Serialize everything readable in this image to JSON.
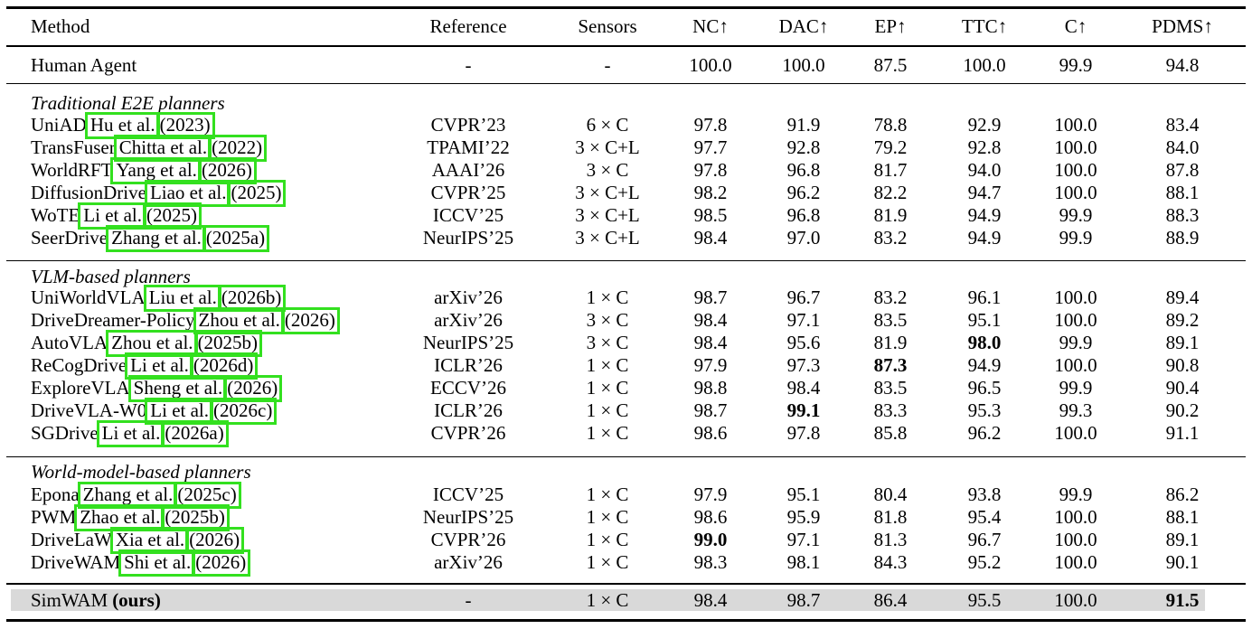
{
  "columns": [
    "Method",
    "Reference",
    "Sensors",
    "NC↑",
    "DAC↑",
    "EP↑",
    "TTC↑",
    "C↑",
    "PDMS↑"
  ],
  "human_row": {
    "method": "Human Agent",
    "reference": "-",
    "sensors": "-",
    "nc": "100.0",
    "dac": "100.0",
    "ep": "87.5",
    "ttc": "100.0",
    "c": "99.9",
    "pdms": "94.8"
  },
  "sections": [
    {
      "title": "Traditional E2E planners"
    },
    {
      "title": "VLM-based planners"
    },
    {
      "title": "World-model-based planners"
    }
  ],
  "rows": [
    {
      "method": "UniAD",
      "authors": "Hu et al.",
      "year": "(2023)",
      "reference": "CVPR’23",
      "sensors": "6 × C",
      "nc": "97.8",
      "dac": "91.9",
      "ep": "78.8",
      "ttc": "92.9",
      "c": "100.0",
      "pdms": "83.4"
    },
    {
      "method": "TransFuser",
      "authors": "Chitta et al.",
      "year": "(2022)",
      "reference": "TPAMI’22",
      "sensors": "3 × C+L",
      "nc": "97.7",
      "dac": "92.8",
      "ep": "79.2",
      "ttc": "92.8",
      "c": "100.0",
      "pdms": "84.0"
    },
    {
      "method": "WorldRFT",
      "authors": "Yang et al.",
      "year": "(2026)",
      "reference": "AAAI’26",
      "sensors": "3 × C",
      "nc": "97.8",
      "dac": "96.8",
      "ep": "81.7",
      "ttc": "94.0",
      "c": "100.0",
      "pdms": "87.8"
    },
    {
      "method": "DiffusionDrive",
      "authors": "Liao et al.",
      "year": "(2025)",
      "reference": "CVPR’25",
      "sensors": "3 × C+L",
      "nc": "98.2",
      "dac": "96.2",
      "ep": "82.2",
      "ttc": "94.7",
      "c": "100.0",
      "pdms": "88.1"
    },
    {
      "method": "WoTE",
      "authors": "Li et al.",
      "year": "(2025)",
      "reference": "ICCV’25",
      "sensors": "3 × C+L",
      "nc": "98.5",
      "dac": "96.8",
      "ep": "81.9",
      "ttc": "94.9",
      "c": "99.9",
      "pdms": "88.3"
    },
    {
      "method": "SeerDrive",
      "authors": "Zhang et al.",
      "year": "(2025a)",
      "reference": "NeurIPS’25",
      "sensors": "3 × C+L",
      "nc": "98.4",
      "dac": "97.0",
      "ep": "83.2",
      "ttc": "94.9",
      "c": "99.9",
      "pdms": "88.9"
    },
    {
      "method": "UniWorldVLA",
      "authors": "Liu et al.",
      "year": "(2026b)",
      "reference": "arXiv’26",
      "sensors": "1 × C",
      "nc": "98.7",
      "dac": "96.7",
      "ep": "83.2",
      "ttc": "96.1",
      "c": "100.0",
      "pdms": "89.4"
    },
    {
      "method": "DriveDreamer-Policy",
      "authors": "Zhou et al.",
      "year": "(2026)",
      "reference": "arXiv’26",
      "sensors": "3 × C",
      "nc": "98.4",
      "dac": "97.1",
      "ep": "83.5",
      "ttc": "95.1",
      "c": "100.0",
      "pdms": "89.2"
    },
    {
      "method": "AutoVLA",
      "authors": "Zhou et al.",
      "year": "(2025b)",
      "reference": "NeurIPS’25",
      "sensors": "3 × C",
      "nc": "98.4",
      "dac": "95.6",
      "ep": "81.9",
      "ttc": "98.0",
      "c": "99.9",
      "pdms": "89.1"
    },
    {
      "method": "ReCogDrive",
      "authors": "Li et al.",
      "year": "(2026d)",
      "reference": "ICLR’26",
      "sensors": "1 × C",
      "nc": "97.9",
      "dac": "97.3",
      "ep": "87.3",
      "ttc": "94.9",
      "c": "100.0",
      "pdms": "90.8"
    },
    {
      "method": "ExploreVLA",
      "authors": "Sheng et al.",
      "year": "(2026)",
      "reference": "ECCV’26",
      "sensors": "1 × C",
      "nc": "98.8",
      "dac": "98.4",
      "ep": "83.5",
      "ttc": "96.5",
      "c": "99.9",
      "pdms": "90.4"
    },
    {
      "method": "DriveVLA-W0",
      "authors": "Li et al.",
      "year": "(2026c)",
      "reference": "ICLR’26",
      "sensors": "1 × C",
      "nc": "98.7",
      "dac": "99.1",
      "ep": "83.3",
      "ttc": "95.3",
      "c": "99.3",
      "pdms": "90.2"
    },
    {
      "method": "SGDrive",
      "authors": "Li et al.",
      "year": "(2026a)",
      "reference": "CVPR’26",
      "sensors": "1 × C",
      "nc": "98.6",
      "dac": "97.8",
      "ep": "85.8",
      "ttc": "96.2",
      "c": "100.0",
      "pdms": "91.1"
    },
    {
      "method": "Epona",
      "authors": "Zhang et al.",
      "year": "(2025c)",
      "reference": "ICCV’25",
      "sensors": "1 × C",
      "nc": "97.9",
      "dac": "95.1",
      "ep": "80.4",
      "ttc": "93.8",
      "c": "99.9",
      "pdms": "86.2"
    },
    {
      "method": "PWM",
      "authors": "Zhao et al.",
      "year": "(2025b)",
      "reference": "NeurIPS’25",
      "sensors": "1 × C",
      "nc": "98.6",
      "dac": "95.9",
      "ep": "81.8",
      "ttc": "95.4",
      "c": "100.0",
      "pdms": "88.1"
    },
    {
      "method": "DriveLaW",
      "authors": "Xia et al.",
      "year": "(2026)",
      "reference": "CVPR’26",
      "sensors": "1 × C",
      "nc": "99.0",
      "dac": "97.1",
      "ep": "81.3",
      "ttc": "96.7",
      "c": "100.0",
      "pdms": "89.1"
    },
    {
      "method": "DriveWAM",
      "authors": "Shi et al.",
      "year": "(2026)",
      "reference": "arXiv’26",
      "sensors": "1 × C",
      "nc": "98.3",
      "dac": "98.1",
      "ep": "84.3",
      "ttc": "95.2",
      "c": "100.0",
      "pdms": "90.1"
    }
  ],
  "ours_row": {
    "method": "SimWAM",
    "tag": "(ours)",
    "reference": "-",
    "sensors": "1 × C",
    "nc": "98.4",
    "dac": "98.7",
    "ep": "86.4",
    "ttc": "95.5",
    "c": "100.0",
    "pdms": "91.5"
  },
  "highlight_color": "#d9d9d9",
  "citation_box_color": "#33e01f"
}
